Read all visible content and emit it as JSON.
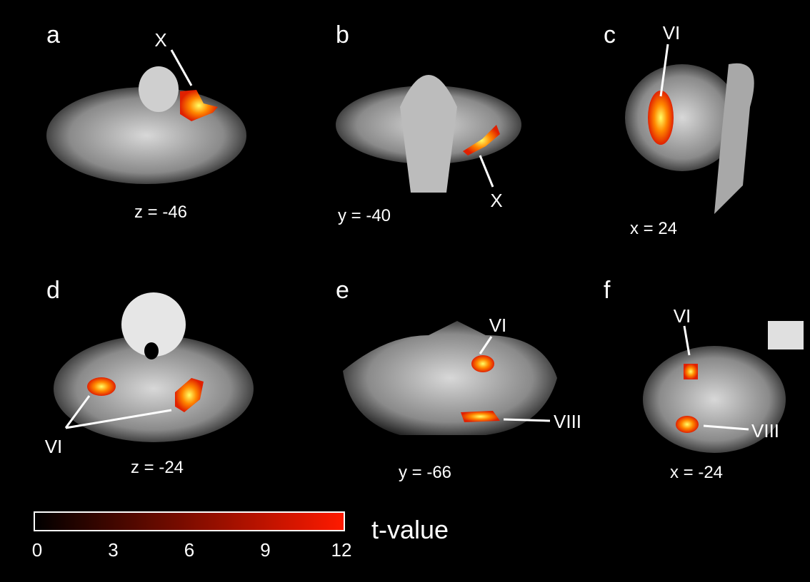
{
  "panels": [
    {
      "letter": "a",
      "coordinate": "z = -46",
      "annotations": [
        "X"
      ]
    },
    {
      "letter": "b",
      "coordinate": "y = -40",
      "annotations": [
        "X"
      ]
    },
    {
      "letter": "c",
      "coordinate": "x = 24",
      "annotations": [
        "VI"
      ]
    },
    {
      "letter": "d",
      "coordinate": "z = -24",
      "annotations": [
        "VI"
      ]
    },
    {
      "letter": "e",
      "coordinate": "y = -66",
      "annotations": [
        "VI",
        "VIII"
      ]
    },
    {
      "letter": "f",
      "coordinate": "x = -24",
      "annotations": [
        "VI",
        "VIII"
      ]
    }
  ],
  "colorbar": {
    "label": "t-value",
    "range": [
      0,
      12
    ],
    "ticks": [
      0,
      3,
      6,
      9,
      12
    ]
  }
}
